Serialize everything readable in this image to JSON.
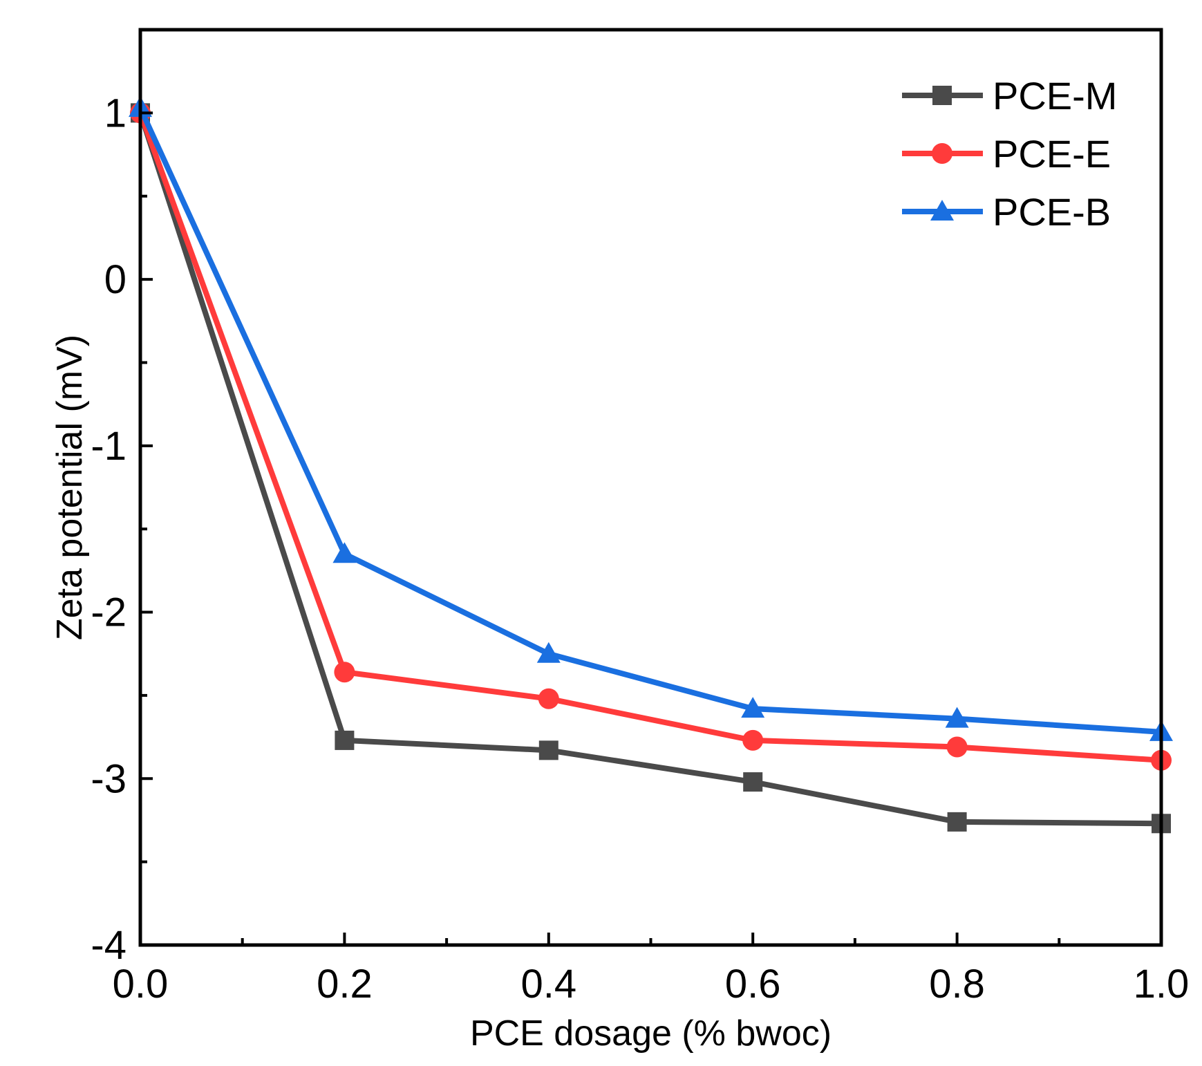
{
  "chart_data": {
    "type": "line",
    "title": "",
    "xlabel": "PCE dosage (% bwoc)",
    "ylabel": "Zeta potential (mV)",
    "xlim": [
      0.0,
      1.0
    ],
    "ylim": [
      -4,
      1.5
    ],
    "x_ticks": [
      "0.0",
      "0.2",
      "0.4",
      "0.6",
      "0.8",
      "1.0"
    ],
    "y_ticks": [
      "1",
      "0",
      "-1",
      "-2",
      "-3",
      "-4"
    ],
    "x": [
      0.0,
      0.2,
      0.4,
      0.6,
      0.8,
      1.0
    ],
    "legend_position": "top-right",
    "grid": false,
    "series": [
      {
        "name": "PCE-M",
        "marker": "square",
        "color": "#4a4a4a",
        "values": [
          1.0,
          -2.77,
          -2.83,
          -3.02,
          -3.26,
          -3.27
        ]
      },
      {
        "name": "PCE-E",
        "marker": "circle",
        "color": "#ff3b3b",
        "values": [
          1.0,
          -2.36,
          -2.52,
          -2.77,
          -2.81,
          -2.89
        ]
      },
      {
        "name": "PCE-B",
        "marker": "triangle",
        "color": "#1a6fe0",
        "values": [
          1.03,
          -1.65,
          -2.25,
          -2.58,
          -2.64,
          -2.72
        ]
      }
    ]
  }
}
